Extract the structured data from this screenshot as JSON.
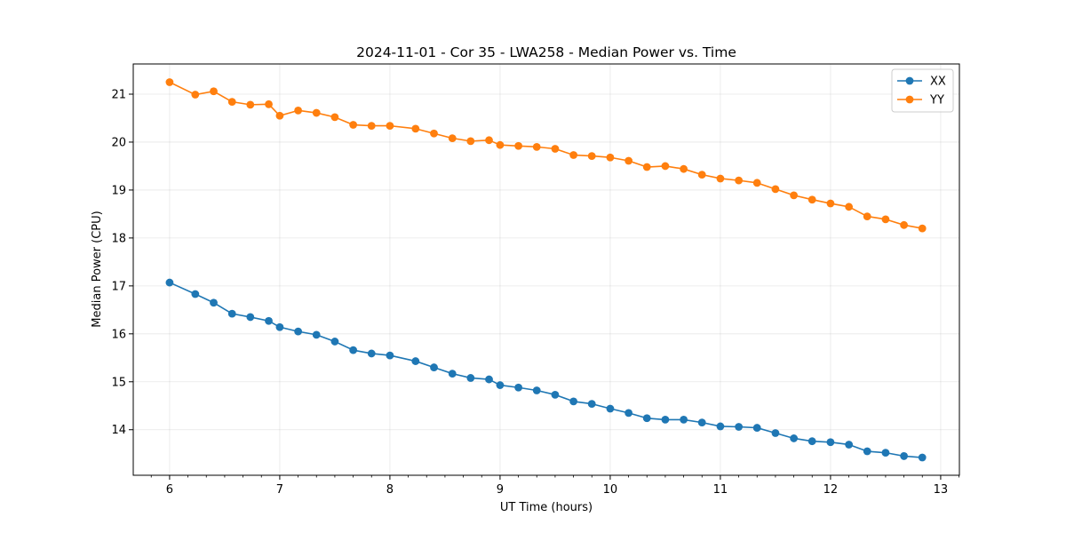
{
  "chart_data": {
    "type": "line",
    "title": "2024-11-01 - Cor 35 - LWA258 - Median Power vs. Time",
    "xlabel": "UT Time (hours)",
    "ylabel": "Median Power (CPU)",
    "xlim": [
      5.67,
      13.17
    ],
    "ylim": [
      13.05,
      21.63
    ],
    "xticks": [
      6,
      7,
      8,
      9,
      10,
      11,
      12,
      13
    ],
    "yticks": [
      14,
      15,
      16,
      17,
      18,
      19,
      20,
      21
    ],
    "grid": true,
    "legend_position": "top-right",
    "x": [
      6.0,
      6.233,
      6.4,
      6.567,
      6.733,
      6.9,
      7.0,
      7.167,
      7.333,
      7.5,
      7.667,
      7.833,
      8.0,
      8.233,
      8.4,
      8.567,
      8.733,
      8.9,
      9.0,
      9.167,
      9.333,
      9.5,
      9.667,
      9.833,
      10.0,
      10.167,
      10.333,
      10.5,
      10.667,
      10.833,
      11.0,
      11.167,
      11.333,
      11.5,
      11.667,
      11.833,
      12.0,
      12.167,
      12.333,
      12.5,
      12.667,
      12.833
    ],
    "series": [
      {
        "name": "XX",
        "color": "#1f77b4",
        "values": [
          17.07,
          16.83,
          16.65,
          16.42,
          16.35,
          16.27,
          16.14,
          16.05,
          15.98,
          15.84,
          15.66,
          15.59,
          15.55,
          15.43,
          15.3,
          15.17,
          15.08,
          15.05,
          14.93,
          14.88,
          14.82,
          14.73,
          14.59,
          14.54,
          14.44,
          14.35,
          14.24,
          14.21,
          14.21,
          14.15,
          14.07,
          14.06,
          14.04,
          13.93,
          13.82,
          13.76,
          13.74,
          13.69,
          13.55,
          13.52,
          13.45,
          13.42
        ]
      },
      {
        "name": "YY",
        "color": "#ff7f0e",
        "values": [
          21.25,
          20.99,
          21.06,
          20.84,
          20.78,
          20.79,
          20.55,
          20.66,
          20.61,
          20.52,
          20.36,
          20.34,
          20.34,
          20.28,
          20.18,
          20.08,
          20.02,
          20.04,
          19.94,
          19.92,
          19.9,
          19.86,
          19.73,
          19.71,
          19.68,
          19.61,
          19.48,
          19.5,
          19.44,
          19.32,
          19.24,
          19.2,
          19.15,
          19.02,
          18.89,
          18.8,
          18.72,
          18.65,
          18.45,
          18.39,
          18.27,
          18.2
        ]
      }
    ]
  }
}
